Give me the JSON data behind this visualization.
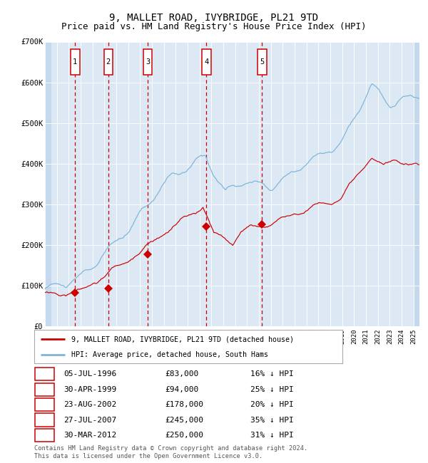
{
  "title": "9, MALLET ROAD, IVYBRIDGE, PL21 9TD",
  "subtitle": "Price paid vs. HM Land Registry's House Price Index (HPI)",
  "ylim": [
    0,
    700000
  ],
  "yticks": [
    0,
    100000,
    200000,
    300000,
    400000,
    500000,
    600000,
    700000
  ],
  "ytick_labels": [
    "£0",
    "£100K",
    "£200K",
    "£300K",
    "£400K",
    "£500K",
    "£600K",
    "£700K"
  ],
  "xlim_start": 1994.0,
  "xlim_end": 2025.5,
  "background_color": "#dce9f5",
  "hatch_color": "#c4d8ee",
  "grid_color": "#ffffff",
  "red_line_color": "#cc0000",
  "blue_line_color": "#7fb3d8",
  "purchase_dates": [
    1996.54,
    1999.33,
    2002.64,
    2007.58,
    2012.25
  ],
  "purchase_prices": [
    83000,
    94000,
    178000,
    245000,
    250000
  ],
  "purchase_labels": [
    "1",
    "2",
    "3",
    "4",
    "5"
  ],
  "table_data": [
    [
      "1",
      "05-JUL-1996",
      "£83,000",
      "16% ↓ HPI"
    ],
    [
      "2",
      "30-APR-1999",
      "£94,000",
      "25% ↓ HPI"
    ],
    [
      "3",
      "23-AUG-2002",
      "£178,000",
      "20% ↓ HPI"
    ],
    [
      "4",
      "27-JUL-2007",
      "£245,000",
      "35% ↓ HPI"
    ],
    [
      "5",
      "30-MAR-2012",
      "£250,000",
      "31% ↓ HPI"
    ]
  ],
  "legend_entries": [
    "9, MALLET ROAD, IVYBRIDGE, PL21 9TD (detached house)",
    "HPI: Average price, detached house, South Hams"
  ],
  "footer": "Contains HM Land Registry data © Crown copyright and database right 2024.\nThis data is licensed under the Open Government Licence v3.0.",
  "title_fontsize": 10,
  "subtitle_fontsize": 9,
  "axis_fontsize": 7.5
}
